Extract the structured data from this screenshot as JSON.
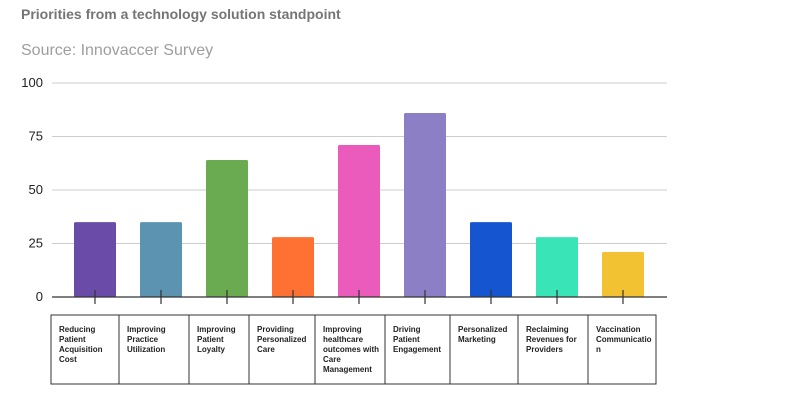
{
  "chart_data": {
    "type": "bar",
    "title": "Priorities from a technology solution standpoint",
    "subtitle": "Source: Innovaccer Survey",
    "categories": [
      "Reducing Patient Acquisition Cost",
      "Improving Practice Utilization",
      "Improving Patient Loyalty",
      "Providing Personalized Care",
      "Improving healthcare outcomes with Care Management",
      "Driving Patient Engagement",
      "Personalized Marketing",
      "Reclaiming Revenues for Providers",
      "Vaccination Communication"
    ],
    "values": [
      35,
      35,
      64,
      28,
      71,
      86,
      35,
      28,
      21
    ],
    "colors": [
      "#6a4ba8",
      "#5b93b0",
      "#6aaa50",
      "#ff7133",
      "#ea5bbb",
      "#8d7fc6",
      "#1556d0",
      "#39e5b7",
      "#f2c233"
    ],
    "ylim": [
      0,
      100
    ],
    "yticks": [
      "0",
      "25",
      "50",
      "75",
      "100"
    ],
    "grid": true,
    "xlabel": "",
    "ylabel": ""
  }
}
